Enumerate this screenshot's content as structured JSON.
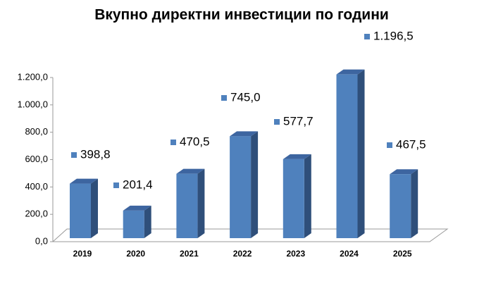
{
  "chart_data": {
    "type": "bar3d",
    "title": "Вкупно директни инвестиции по години",
    "categories": [
      "2019",
      "2020",
      "2021",
      "2022",
      "2023",
      "2024",
      "2025"
    ],
    "values": [
      398.8,
      201.4,
      470.5,
      745.0,
      577.7,
      1196.5,
      467.5
    ],
    "value_labels": [
      "398,8",
      "201,4",
      "470,5",
      "745,0",
      "577,7",
      "1.196,5",
      "467,5"
    ],
    "color": "#4f81bd",
    "ylim": [
      0,
      1200
    ],
    "yticks": [
      {
        "value": 0,
        "label": "0,0"
      },
      {
        "value": 200,
        "label": "200,0"
      },
      {
        "value": 400,
        "label": "400,0"
      },
      {
        "value": 600,
        "label": "600,0"
      },
      {
        "value": 800,
        "label": "800,0"
      },
      {
        "value": 1000,
        "label": "1.000,0"
      },
      {
        "value": 1200,
        "label": "1.200,0"
      }
    ],
    "grid": false
  }
}
